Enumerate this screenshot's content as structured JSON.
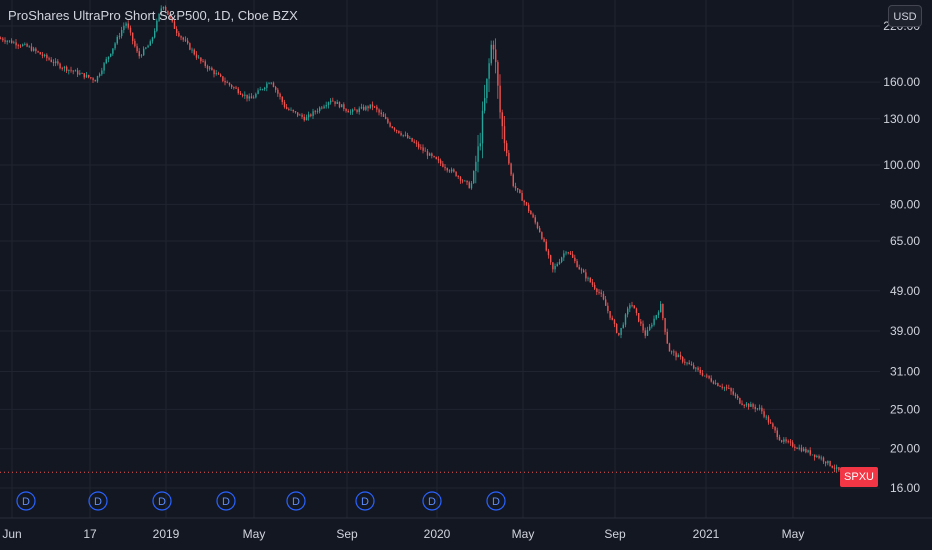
{
  "header": {
    "title": "ProShares UltraPro Short S&P500, 1D, Cboe BZX",
    "currency": "USD",
    "ticker": "SPXU"
  },
  "colors": {
    "background": "#131722",
    "up": "#26a69a",
    "down": "#ef5350",
    "grid": "#1f2430",
    "text": "#d1d4dc",
    "dividend": "#2962ff"
  },
  "dividend_marker_label": "D",
  "chart_data": {
    "type": "candlestick",
    "title": "ProShares UltraPro Short S&P500, 1D, Cboe BZX",
    "yscale": "log",
    "ylim": [
      13.5,
      255
    ],
    "y_ticks": [
      "220.00",
      "160.00",
      "130.00",
      "100.00",
      "80.00",
      "65.00",
      "49.00",
      "39.00",
      "31.00",
      "25.00",
      "20.00",
      "16.00"
    ],
    "x_ticks": [
      "Jun",
      "17",
      "2019",
      "May",
      "Sep",
      "2020",
      "May",
      "Sep",
      "2021",
      "May"
    ],
    "last_price_line": 17.5,
    "dividends": [
      1,
      2,
      3,
      4,
      5,
      6,
      7,
      8
    ],
    "path": [
      [
        0,
        205
      ],
      [
        28,
        195
      ],
      [
        60,
        175
      ],
      [
        95,
        162
      ],
      [
        110,
        190
      ],
      [
        125,
        225
      ],
      [
        138,
        185
      ],
      [
        150,
        200
      ],
      [
        162,
        250
      ],
      [
        175,
        215
      ],
      [
        200,
        180
      ],
      [
        225,
        160
      ],
      [
        250,
        145
      ],
      [
        270,
        162
      ],
      [
        285,
        138
      ],
      [
        305,
        130
      ],
      [
        330,
        145
      ],
      [
        350,
        135
      ],
      [
        372,
        140
      ],
      [
        390,
        125
      ],
      [
        410,
        115
      ],
      [
        430,
        105
      ],
      [
        455,
        95
      ],
      [
        470,
        88
      ],
      [
        478,
        110
      ],
      [
        485,
        150
      ],
      [
        492,
        210
      ],
      [
        500,
        130
      ],
      [
        512,
        90
      ],
      [
        525,
        80
      ],
      [
        540,
        68
      ],
      [
        552,
        55
      ],
      [
        566,
        62
      ],
      [
        580,
        55
      ],
      [
        600,
        48
      ],
      [
        618,
        38
      ],
      [
        630,
        46
      ],
      [
        645,
        38
      ],
      [
        660,
        45
      ],
      [
        668,
        35
      ],
      [
        690,
        32
      ],
      [
        715,
        29
      ],
      [
        728,
        28
      ],
      [
        740,
        26
      ],
      [
        760,
        25
      ],
      [
        780,
        21
      ],
      [
        800,
        20
      ],
      [
        820,
        19
      ],
      [
        840,
        17.5
      ]
    ]
  }
}
